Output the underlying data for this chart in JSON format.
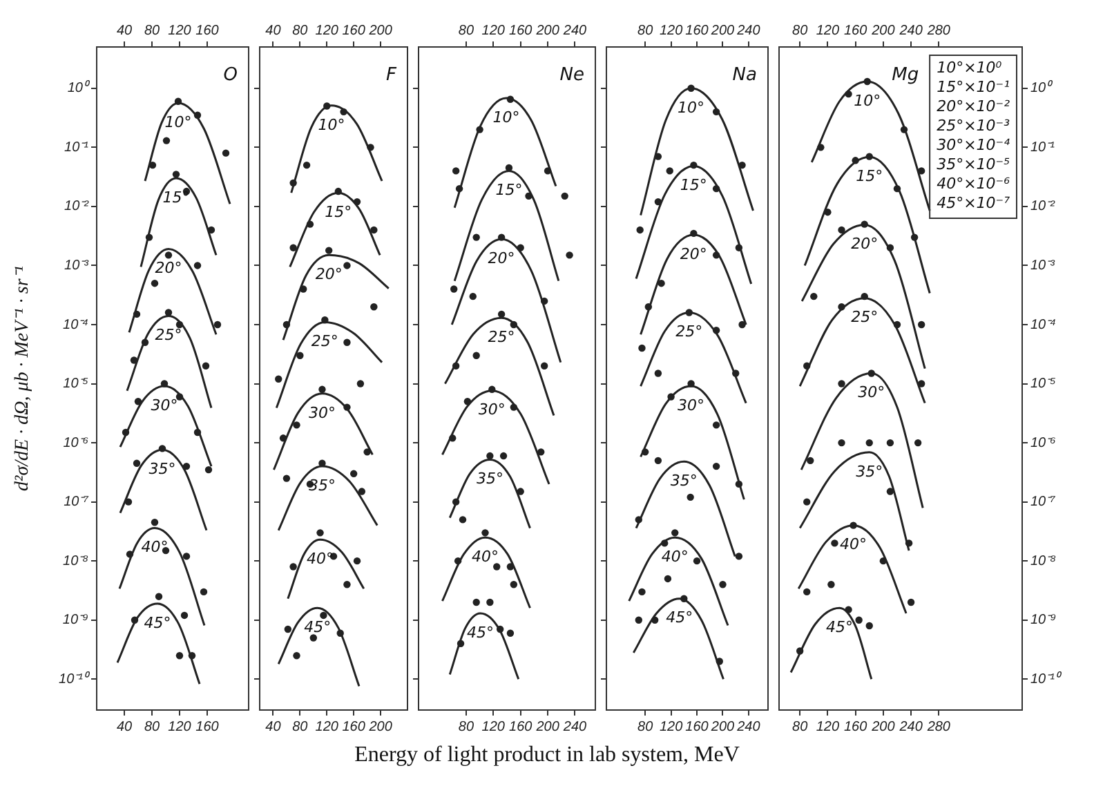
{
  "chart_data": [
    {
      "type": "line",
      "title": "O",
      "ylabel": "d²σ/dE · dΩ, μb · MeV⁻¹ · sr⁻¹",
      "xlim": [
        0,
        220
      ],
      "xticks": [
        40,
        80,
        120,
        160
      ],
      "x2lim": [
        0,
        220
      ],
      "x2ticks": [
        40,
        80,
        120,
        160
      ],
      "log": "y",
      "ylim": [
        3e-11,
        5
      ],
      "yticks": [
        {
          "value": 1e-10,
          "label": "10⁻¹⁰"
        },
        {
          "value": 1e-09,
          "label": "10⁻⁹"
        },
        {
          "value": 1e-08,
          "label": "10⁻⁸"
        },
        {
          "value": 1e-07,
          "label": "10⁻⁷"
        },
        {
          "value": 1e-06,
          "label": "10⁻⁶"
        },
        {
          "value": 1e-05,
          "label": "10⁻⁵"
        },
        {
          "value": 0.0001,
          "label": "10⁻⁴"
        },
        {
          "value": 0.001,
          "label": "10⁻³"
        },
        {
          "value": 0.01,
          "label": "10⁻²"
        },
        {
          "value": 0.1,
          "label": "10⁻¹"
        },
        {
          "value": 1,
          "label": "10⁰"
        }
      ],
      "grid": false,
      "legend": false,
      "series": [
        {
          "name": "10°",
          "type": "line",
          "marker": "none",
          "color": "#222222",
          "x": [
            70,
            94,
            118,
            155,
            193
          ],
          "values": [
            0.027,
            0.26,
            0.56,
            0.21,
            0.011
          ]
        },
        {
          "type": "scatter",
          "marker": "circle",
          "color": "#222222",
          "x": [
            81,
            101,
            118,
            146,
            187
          ],
          "values": [
            0.05,
            0.13,
            0.6,
            0.35,
            0.08
          ]
        },
        {
          "name": "15°",
          "type": "line",
          "marker": "none",
          "color": "#222222",
          "x": [
            64,
            89.5,
            115,
            144,
            173
          ],
          "values": [
            0.00095,
            0.013,
            0.03,
            0.014,
            0.0015
          ]
        },
        {
          "type": "scatter",
          "marker": "circle",
          "color": "#222222",
          "x": [
            76,
            115,
            130,
            166
          ],
          "values": [
            0.003,
            0.035,
            0.018,
            0.004
          ]
        },
        {
          "name": "20°",
          "type": "line",
          "marker": "none",
          "color": "#222222",
          "x": [
            47,
            75.5,
            104,
            138.5,
            173
          ],
          "values": [
            7.4e-05,
            0.00083,
            0.0019,
            0.00081,
            6.8e-05
          ]
        },
        {
          "type": "scatter",
          "marker": "circle",
          "color": "#222222",
          "x": [
            58,
            84,
            104,
            146,
            175
          ],
          "values": [
            0.00015,
            0.0005,
            0.0015,
            0.001,
            0.0001
          ]
        },
        {
          "name": "25°",
          "type": "line",
          "marker": "none",
          "color": "#222222",
          "x": [
            44,
            74,
            104,
            135,
            166
          ],
          "values": [
            7.6e-06,
            6.9e-05,
            0.00014,
            5.9e-05,
            3.9e-06
          ]
        },
        {
          "type": "scatter",
          "marker": "circle",
          "color": "#222222",
          "x": [
            54,
            70,
            104,
            120,
            158
          ],
          "values": [
            2.5e-05,
            5e-05,
            0.00016,
            0.0001,
            2e-05
          ]
        },
        {
          "name": "30°",
          "type": "line",
          "marker": "none",
          "color": "#222222",
          "x": [
            34,
            66,
            98,
            132,
            166
          ],
          "values": [
            8.5e-07,
            5e-06,
            9.1e-06,
            4.2e-06,
            4e-07
          ]
        },
        {
          "type": "scatter",
          "marker": "circle",
          "color": "#222222",
          "x": [
            42,
            60,
            98,
            120,
            146
          ],
          "values": [
            1.5e-06,
            5e-06,
            1e-05,
            6e-06,
            1.5e-06
          ]
        },
        {
          "name": "35°",
          "type": "line",
          "marker": "none",
          "color": "#222222",
          "x": [
            34,
            64.5,
            95,
            127,
            159
          ],
          "values": [
            6.5e-08,
            4.1e-07,
            7.6e-07,
            3.5e-07,
            3.3e-08
          ]
        },
        {
          "type": "scatter",
          "marker": "circle",
          "color": "#222222",
          "x": [
            46,
            58,
            95,
            130,
            162
          ],
          "values": [
            1e-07,
            4.5e-07,
            8e-07,
            4e-07,
            3.5e-07
          ]
        },
        {
          "name": "40°",
          "type": "line",
          "marker": "none",
          "color": "#222222",
          "x": [
            33,
            58.5,
            84,
            120,
            156
          ],
          "values": [
            3.4e-09,
            2e-08,
            3.6e-08,
            1.4e-08,
            8.1e-10
          ]
        },
        {
          "type": "scatter",
          "marker": "circle",
          "color": "#222222",
          "x": [
            48,
            84,
            100,
            130,
            155
          ],
          "values": [
            1.3e-08,
            4.5e-08,
            1.5e-08,
            1.2e-08,
            3e-09
          ]
        },
        {
          "name": "45°",
          "type": "line",
          "marker": "none",
          "color": "#222222",
          "x": [
            30,
            59,
            88,
            118.5,
            149
          ],
          "values": [
            1.9e-10,
            1.1e-09,
            1.9e-09,
            8.7e-10,
            8.3e-11
          ]
        },
        {
          "type": "scatter",
          "marker": "circle",
          "color": "#222222",
          "x": [
            55,
            90,
            120,
            127,
            138
          ],
          "values": [
            1e-09,
            2.5e-09,
            2.5e-10,
            1.2e-09,
            2.5e-10
          ]
        }
      ]
    },
    {
      "type": "line",
      "title": "F",
      "xlim": [
        20,
        240
      ],
      "xticks": [
        40,
        80,
        120,
        160,
        200
      ],
      "x2lim": [
        20,
        240
      ],
      "x2ticks": [
        40,
        80,
        120,
        160,
        200
      ],
      "log": "y",
      "ylim": [
        3e-11,
        5
      ],
      "yticks": [
        1e-10,
        1e-09,
        1e-08,
        1e-07,
        1e-06,
        1e-05,
        0.0001,
        0.001,
        0.01,
        0.1,
        1
      ],
      "tick_labels": "x",
      "grid": false,
      "legend": false,
      "series": [
        {
          "name": "10°",
          "type": "line",
          "marker": "none",
          "color": "#222222",
          "x": [
            67,
            97,
            127,
            164.5,
            202
          ],
          "values": [
            0.017,
            0.22,
            0.51,
            0.25,
            0.027
          ]
        },
        {
          "type": "scatter",
          "marker": "circle",
          "color": "#222222",
          "x": [
            70,
            90,
            120,
            145,
            185
          ],
          "values": [
            0.025,
            0.05,
            0.5,
            0.4,
            0.1
          ]
        },
        {
          "name": "15°",
          "type": "line",
          "marker": "none",
          "color": "#222222",
          "x": [
            65,
            101,
            137,
            168,
            199
          ],
          "values": [
            0.00095,
            0.0081,
            0.017,
            0.0091,
            0.0015
          ]
        },
        {
          "type": "scatter",
          "marker": "circle",
          "color": "#222222",
          "x": [
            70,
            95,
            137,
            165,
            190
          ],
          "values": [
            0.002,
            0.005,
            0.018,
            0.012,
            0.004
          ]
        },
        {
          "name": "20°",
          "type": "line",
          "marker": "none",
          "color": "#222222",
          "x": [
            55,
            89,
            123,
            167.5,
            212
          ],
          "values": [
            5.5e-05,
            0.00068,
            0.0015,
            0.0011,
            0.00041
          ]
        },
        {
          "type": "scatter",
          "marker": "circle",
          "color": "#222222",
          "x": [
            60,
            85,
            123,
            150,
            190
          ],
          "values": [
            0.0001,
            0.0004,
            0.0018,
            0.001,
            0.0002
          ]
        },
        {
          "name": "25°",
          "type": "line",
          "marker": "none",
          "color": "#222222",
          "x": [
            45,
            81,
            117,
            159.5,
            202
          ],
          "values": [
            3.9e-06,
            4.7e-05,
            0.00011,
            7.2e-05,
            2.3e-05
          ]
        },
        {
          "type": "scatter",
          "marker": "circle",
          "color": "#222222",
          "x": [
            48,
            80,
            117,
            150,
            170
          ],
          "values": [
            1.2e-05,
            3e-05,
            0.00012,
            5e-05,
            1e-05
          ]
        },
        {
          "name": "30°",
          "type": "line",
          "marker": "none",
          "color": "#222222",
          "x": [
            41,
            77,
            113,
            150.5,
            188
          ],
          "values": [
            3.5e-07,
            3.2e-06,
            6.8e-06,
            3.7e-06,
            6.3e-07
          ]
        },
        {
          "type": "scatter",
          "marker": "circle",
          "color": "#222222",
          "x": [
            55,
            75,
            113,
            150,
            180
          ],
          "values": [
            1.2e-06,
            2e-06,
            8e-06,
            4e-06,
            7e-07
          ]
        },
        {
          "name": "35°",
          "type": "line",
          "marker": "none",
          "color": "#222222",
          "x": [
            48,
            80.5,
            113,
            154,
            195
          ],
          "values": [
            3.3e-08,
            2.1e-07,
            4e-07,
            2.2e-07,
            4e-08
          ]
        },
        {
          "type": "scatter",
          "marker": "circle",
          "color": "#222222",
          "x": [
            60,
            95,
            113,
            160,
            172
          ],
          "values": [
            2.5e-07,
            2e-07,
            4.5e-07,
            3e-07,
            1.5e-07
          ]
        },
        {
          "name": "40°",
          "type": "line",
          "marker": "none",
          "color": "#222222",
          "x": [
            62,
            86,
            110,
            142.5,
            175
          ],
          "values": [
            2.3e-09,
            1.3e-08,
            2.3e-08,
            1.4e-08,
            3.4e-09
          ]
        },
        {
          "type": "scatter",
          "marker": "circle",
          "color": "#222222",
          "x": [
            70,
            110,
            130,
            150,
            165
          ],
          "values": [
            8e-09,
            3e-08,
            1.2e-08,
            4e-09,
            1e-08
          ]
        },
        {
          "name": "45°",
          "type": "line",
          "marker": "none",
          "color": "#222222",
          "x": [
            48,
            77,
            106,
            137,
            168
          ],
          "values": [
            1.8e-10,
            9.1e-10,
            1.6e-09,
            7.4e-10,
            7.6e-11
          ]
        },
        {
          "type": "scatter",
          "marker": "circle",
          "color": "#222222",
          "x": [
            62,
            75,
            100,
            115,
            140
          ],
          "values": [
            7e-10,
            2.5e-10,
            5e-10,
            1.2e-09,
            6e-10
          ]
        }
      ]
    },
    {
      "type": "line",
      "title": "Ne",
      "xlabel": "Energy of light product in lab system, MeV",
      "xlim": [
        10,
        270
      ],
      "xticks": [
        80,
        120,
        160,
        200,
        240
      ],
      "x2lim": [
        10,
        270
      ],
      "x2ticks": [
        80,
        120,
        160,
        200,
        240
      ],
      "log": "y",
      "ylim": [
        3e-11,
        5
      ],
      "yticks": [
        1e-10,
        1e-09,
        1e-08,
        1e-07,
        1e-06,
        1e-05,
        0.0001,
        0.001,
        0.01,
        0.1,
        1
      ],
      "tick_labels": "x",
      "grid": false,
      "legend": false,
      "series": [
        {
          "name": "10°",
          "type": "line",
          "marker": "none",
          "color": "#222222",
          "x": [
            63,
            101,
            139,
            175.5,
            212
          ],
          "values": [
            0.0095,
            0.23,
            0.68,
            0.29,
            0.022
          ]
        },
        {
          "type": "scatter",
          "marker": "circle",
          "color": "#222222",
          "x": [
            65,
            100,
            145,
            200,
            225
          ],
          "values": [
            0.04,
            0.2,
            0.65,
            0.04,
            0.015
          ]
        },
        {
          "name": "15°",
          "type": "line",
          "marker": "none",
          "color": "#222222",
          "x": [
            63,
            103,
            143,
            179.5,
            216
          ],
          "values": [
            0.00055,
            0.013,
            0.04,
            0.013,
            0.00055
          ]
        },
        {
          "type": "scatter",
          "marker": "circle",
          "color": "#222222",
          "x": [
            70,
            95,
            143,
            172,
            232
          ],
          "values": [
            0.02,
            0.003,
            0.045,
            0.015,
            0.0015
          ]
        },
        {
          "name": "20°",
          "type": "line",
          "marker": "none",
          "color": "#222222",
          "x": [
            59,
            95.5,
            132,
            175.5,
            219
          ],
          "values": [
            0.0001,
            0.0012,
            0.0028,
            0.00083,
            2.3e-05
          ]
        },
        {
          "type": "scatter",
          "marker": "circle",
          "color": "#222222",
          "x": [
            62,
            90,
            132,
            160,
            195
          ],
          "values": [
            0.0004,
            0.0003,
            0.003,
            0.002,
            0.00025
          ]
        },
        {
          "name": "25°",
          "type": "line",
          "marker": "none",
          "color": "#222222",
          "x": [
            49,
            90.5,
            132,
            170.5,
            209
          ],
          "values": [
            1e-05,
            6.9e-05,
            0.00013,
            5e-05,
            2.9e-06
          ]
        },
        {
          "type": "scatter",
          "marker": "circle",
          "color": "#222222",
          "x": [
            65,
            95,
            132,
            150,
            195
          ],
          "values": [
            2e-05,
            3e-05,
            0.00015,
            0.0001,
            2e-05
          ]
        },
        {
          "name": "30°",
          "type": "line",
          "marker": "none",
          "color": "#222222",
          "x": [
            45,
            81.5,
            118,
            160,
            202
          ],
          "values": [
            6.3e-07,
            4.1e-06,
            7.6e-06,
            3.1e-06,
            2e-07
          ]
        },
        {
          "type": "scatter",
          "marker": "circle",
          "color": "#222222",
          "x": [
            60,
            82,
            118,
            150,
            190
          ],
          "values": [
            1.2e-06,
            5e-06,
            8e-06,
            4e-06,
            7e-07
          ]
        },
        {
          "name": "35°",
          "type": "line",
          "marker": "none",
          "color": "#222222",
          "x": [
            56,
            85.5,
            115,
            144.5,
            174
          ],
          "values": [
            5.4e-08,
            3e-07,
            5.2e-07,
            2.7e-07,
            3.6e-08
          ]
        },
        {
          "type": "scatter",
          "marker": "circle",
          "color": "#222222",
          "x": [
            65,
            75,
            115,
            135,
            160
          ],
          "values": [
            1e-07,
            5e-08,
            6e-07,
            6e-07,
            1.5e-07
          ]
        },
        {
          "name": "40°",
          "type": "line",
          "marker": "none",
          "color": "#222222",
          "x": [
            45,
            76.5,
            108,
            141,
            174
          ],
          "values": [
            2.1e-09,
            1.3e-08,
            2.5e-08,
            1.3e-08,
            1.6e-09
          ]
        },
        {
          "type": "scatter",
          "marker": "circle",
          "color": "#222222",
          "x": [
            68,
            108,
            125,
            145,
            150
          ],
          "values": [
            1e-08,
            3e-08,
            8e-09,
            8e-09,
            4e-09
          ]
        },
        {
          "name": "45°",
          "type": "line",
          "marker": "none",
          "color": "#222222",
          "x": [
            56,
            78.5,
            101,
            129,
            157
          ],
          "values": [
            1.2e-10,
            7.2e-10,
            1.3e-09,
            6.9e-10,
            1e-10
          ]
        },
        {
          "type": "scatter",
          "marker": "circle",
          "color": "#222222",
          "x": [
            72,
            95,
            115,
            130,
            145
          ],
          "values": [
            4e-10,
            2e-09,
            2e-09,
            7e-10,
            6e-10
          ]
        }
      ]
    },
    {
      "type": "line",
      "title": "Na",
      "xlim": [
        20,
        270
      ],
      "xticks": [
        80,
        120,
        160,
        200,
        240
      ],
      "x2lim": [
        20,
        270
      ],
      "x2ticks": [
        80,
        120,
        160,
        200,
        240
      ],
      "log": "y",
      "ylim": [
        3e-11,
        5
      ],
      "yticks": [
        1e-10,
        1e-09,
        1e-08,
        1e-07,
        1e-06,
        1e-05,
        0.0001,
        0.001,
        0.01,
        0.1,
        1
      ],
      "tick_labels": "x",
      "grid": false,
      "legend": false,
      "series": [
        {
          "name": "10°",
          "type": "line",
          "marker": "none",
          "color": "#222222",
          "x": [
            73,
            112,
            151,
            199,
            247
          ],
          "values": [
            0.0071,
            0.29,
            1.0,
            0.3,
            0.0085
          ]
        },
        {
          "type": "scatter",
          "marker": "circle",
          "color": "#222222",
          "x": [
            100,
            118,
            151,
            190,
            230
          ],
          "values": [
            0.07,
            0.04,
            1.0,
            0.4,
            0.05
          ]
        },
        {
          "name": "15°",
          "type": "line",
          "marker": "none",
          "color": "#222222",
          "x": [
            66,
            110.5,
            155,
            199.5,
            244
          ],
          "values": [
            0.0006,
            0.016,
            0.048,
            0.015,
            0.00049
          ]
        },
        {
          "type": "scatter",
          "marker": "circle",
          "color": "#222222",
          "x": [
            72,
            100,
            155,
            190,
            225
          ],
          "values": [
            0.004,
            0.012,
            0.05,
            0.02,
            0.002
          ]
        },
        {
          "name": "20°",
          "type": "line",
          "marker": "none",
          "color": "#222222",
          "x": [
            73,
            114,
            155,
            195.5,
            236
          ],
          "values": [
            6.8e-05,
            0.0013,
            0.0033,
            0.0014,
            0.0001
          ]
        },
        {
          "type": "scatter",
          "marker": "circle",
          "color": "#222222",
          "x": [
            85,
            105,
            155,
            190,
            230
          ],
          "values": [
            0.0002,
            0.0005,
            0.0035,
            0.0015,
            0.0001
          ]
        },
        {
          "name": "25°",
          "type": "line",
          "marker": "none",
          "color": "#222222",
          "x": [
            73,
            110.5,
            148,
            192,
            236
          ],
          "values": [
            9.1e-06,
            7.8e-05,
            0.00016,
            6.6e-05,
            4.7e-06
          ]
        },
        {
          "type": "scatter",
          "marker": "circle",
          "color": "#222222",
          "x": [
            75,
            100,
            148,
            190,
            220
          ],
          "values": [
            4e-05,
            1.5e-05,
            0.00016,
            8e-05,
            1.5e-05
          ]
        },
        {
          "name": "30°",
          "type": "line",
          "marker": "none",
          "color": "#222222",
          "x": [
            73,
            112,
            151,
            192,
            233
          ],
          "values": [
            5.8e-07,
            4.6e-06,
            9.1e-06,
            3e-06,
            1.1e-07
          ]
        },
        {
          "type": "scatter",
          "marker": "circle",
          "color": "#222222",
          "x": [
            80,
            120,
            151,
            190,
            225
          ],
          "values": [
            7e-07,
            6e-06,
            1e-05,
            2e-06,
            2e-07
          ]
        },
        {
          "name": "35°",
          "type": "line",
          "marker": "none",
          "color": "#222222",
          "x": [
            66,
            103,
            140,
            179.5,
            219
          ],
          "values": [
            3.6e-08,
            2.5e-07,
            4.8e-07,
            1.9e-07,
            1.2e-08
          ]
        },
        {
          "type": "scatter",
          "marker": "circle",
          "color": "#222222",
          "x": [
            70,
            100,
            150,
            190,
            225
          ],
          "values": [
            5e-08,
            5e-07,
            1.2e-07,
            4e-07,
            1.2e-08
          ]
        },
        {
          "name": "40°",
          "type": "line",
          "marker": "none",
          "color": "#222222",
          "x": [
            55,
            90.5,
            126,
            167,
            208
          ],
          "values": [
            2.1e-09,
            1.3e-08,
            2.5e-08,
            1.1e-08,
            8.1e-10
          ]
        },
        {
          "type": "scatter",
          "marker": "circle",
          "color": "#222222",
          "x": [
            75,
            110,
            126,
            160,
            200
          ],
          "values": [
            3e-09,
            2e-08,
            3e-08,
            1e-08,
            4e-09
          ]
        },
        {
          "name": "45°",
          "type": "line",
          "marker": "none",
          "color": "#222222",
          "x": [
            62,
            97.5,
            133,
            167,
            201
          ],
          "values": [
            2.8e-10,
            1.3e-09,
            2.3e-09,
            1e-09,
            1e-10
          ]
        },
        {
          "type": "scatter",
          "marker": "circle",
          "color": "#222222",
          "x": [
            70,
            95,
            115,
            140,
            195
          ],
          "values": [
            1e-09,
            1e-09,
            5e-09,
            2.3e-09,
            2e-10
          ]
        }
      ]
    },
    {
      "type": "line",
      "title": "Mg",
      "annotations": [
        "10°×10⁰",
        "15°×10⁻¹",
        "20°×10⁻²",
        "25°×10⁻³",
        "30°×10⁻⁴",
        "35°×10⁻⁵",
        "40°×10⁻⁶",
        "45°×10⁻⁷"
      ],
      "xlim": [
        50,
        400
      ],
      "xticks": [
        80,
        120,
        160,
        200,
        240,
        280
      ],
      "x2lim": [
        50,
        400
      ],
      "x2ticks": [
        80,
        120,
        160,
        200,
        240,
        280
      ],
      "log": "y2",
      "y2lim": [
        3e-11,
        5
      ],
      "y2ticks": [
        {
          "value": 1e-10,
          "label": "10⁻¹⁰"
        },
        {
          "value": 1e-09,
          "label": "10⁻⁹"
        },
        {
          "value": 1e-08,
          "label": "10⁻⁸"
        },
        {
          "value": 1e-07,
          "label": "10⁻⁷"
        },
        {
          "value": 1e-06,
          "label": "10⁻⁶"
        },
        {
          "value": 1e-05,
          "label": "10⁻⁵"
        },
        {
          "value": 0.0001,
          "label": "10⁻⁴"
        },
        {
          "value": 0.001,
          "label": "10⁻³"
        },
        {
          "value": 0.01,
          "label": "10⁻²"
        },
        {
          "value": 0.1,
          "label": "10⁻¹"
        },
        {
          "value": 1,
          "label": "10⁰"
        }
      ],
      "grid": false,
      "legend": false,
      "series": [
        {
          "name": "10°",
          "type": "line",
          "axis": "y2",
          "marker": "none",
          "color": "#222222",
          "x": [
            97,
            137,
            177,
            222,
            267
          ],
          "values": [
            0.056,
            0.6,
            1.3,
            0.37,
            0.0085
          ]
        },
        {
          "type": "scatter",
          "axis": "y2",
          "marker": "circle",
          "color": "#222222",
          "x": [
            110,
            150,
            177,
            230,
            255
          ],
          "values": [
            0.1,
            0.8,
            1.3,
            0.2,
            0.04
          ]
        },
        {
          "name": "15°",
          "type": "line",
          "axis": "y2",
          "marker": "none",
          "color": "#222222",
          "x": [
            87,
            133.5,
            180,
            223.5,
            267
          ],
          "values": [
            0.001,
            0.024,
            0.069,
            0.018,
            0.00034
          ]
        },
        {
          "type": "scatter",
          "axis": "y2",
          "marker": "circle",
          "color": "#222222",
          "x": [
            120,
            160,
            180,
            220,
            245
          ],
          "values": [
            0.008,
            0.06,
            0.07,
            0.02,
            0.003
          ]
        },
        {
          "name": "20°",
          "type": "line",
          "axis": "y2",
          "marker": "none",
          "color": "#222222",
          "x": [
            83,
            128,
            173,
            216.5,
            260
          ],
          "values": [
            0.00025,
            0.0023,
            0.0049,
            0.0012,
            1.8e-05
          ]
        },
        {
          "type": "scatter",
          "axis": "y2",
          "marker": "circle",
          "color": "#222222",
          "x": [
            100,
            140,
            173,
            210,
            255
          ],
          "values": [
            0.0003,
            0.004,
            0.005,
            0.002,
            0.0001
          ]
        },
        {
          "name": "25°",
          "type": "line",
          "axis": "y2",
          "marker": "none",
          "color": "#222222",
          "x": [
            80,
            126.5,
            173,
            216.5,
            260
          ],
          "values": [
            9.1e-06,
            0.00012,
            0.00028,
            0.0001,
            4.7e-06
          ]
        },
        {
          "type": "scatter",
          "axis": "y2",
          "marker": "circle",
          "color": "#222222",
          "x": [
            90,
            140,
            173,
            220,
            255
          ],
          "values": [
            2e-05,
            0.0002,
            0.0003,
            0.0001,
            1e-05
          ]
        },
        {
          "name": "30°",
          "type": "line",
          "axis": "y2",
          "marker": "none",
          "color": "#222222",
          "x": [
            82,
            132.5,
            183,
            220,
            257
          ],
          "values": [
            3.5e-07,
            5.8e-06,
            1.5e-05,
            4e-06,
            7.9e-08
          ]
        },
        {
          "type": "scatter",
          "axis": "y2",
          "marker": "circle",
          "color": "#222222",
          "x": [
            95,
            140,
            183,
            210,
            250
          ],
          "values": [
            5e-07,
            1e-05,
            1.5e-05,
            1e-06,
            1e-06
          ]
        },
        {
          "name": "35°",
          "type": "line",
          "axis": "y2",
          "marker": "none",
          "color": "#222222",
          "x": [
            80,
            130,
            180,
            208.5,
            237
          ],
          "values": [
            3.6e-08,
            3.3e-07,
            6.9e-07,
            2.7e-07,
            1.5e-08
          ]
        },
        {
          "type": "scatter",
          "axis": "y2",
          "marker": "circle",
          "color": "#222222",
          "x": [
            90,
            140,
            180,
            210,
            237
          ],
          "values": [
            1e-07,
            1e-06,
            1e-06,
            1.5e-07,
            2e-08
          ]
        },
        {
          "name": "40°",
          "type": "line",
          "axis": "y2",
          "marker": "none",
          "color": "#222222",
          "x": [
            78,
            117.5,
            157,
            195,
            233
          ],
          "values": [
            3.4e-09,
            2.1e-08,
            4e-08,
            1.7e-08,
            1.3e-09
          ]
        },
        {
          "type": "scatter",
          "axis": "y2",
          "marker": "circle",
          "color": "#222222",
          "x": [
            90,
            130,
            157,
            200,
            240
          ],
          "values": [
            3e-09,
            2e-08,
            4e-08,
            1e-08,
            2e-09
          ]
        },
        {
          "name": "45°",
          "type": "line",
          "axis": "y2",
          "marker": "none",
          "color": "#222222",
          "x": [
            67,
            102,
            137,
            160,
            183
          ],
          "values": [
            1.3e-10,
            8.5e-10,
            1.6e-09,
            7.9e-10,
            1e-10
          ]
        },
        {
          "type": "scatter",
          "axis": "y2",
          "marker": "circle",
          "color": "#222222",
          "x": [
            80,
            125,
            150,
            165,
            180
          ],
          "values": [
            3e-10,
            4e-09,
            1.5e-09,
            1e-09,
            8e-10
          ]
        }
      ]
    }
  ]
}
